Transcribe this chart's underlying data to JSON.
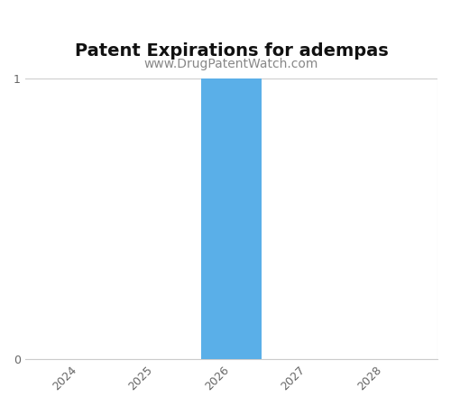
{
  "title": "Patent Expirations for adempas",
  "subtitle": "www.DrugPatentWatch.com",
  "years": [
    2024,
    2025,
    2026,
    2027,
    2028
  ],
  "values": [
    0,
    0,
    1,
    0,
    0
  ],
  "bar_color": "#5aafe8",
  "ylim": [
    0,
    1
  ],
  "yticks": [
    0,
    1
  ],
  "title_fontsize": 14,
  "subtitle_fontsize": 10,
  "tick_fontsize": 9,
  "bar_width": 0.8,
  "background_color": "#ffffff",
  "axis_color": "#cccccc",
  "tick_color": "#666666",
  "subtitle_color": "#888888"
}
